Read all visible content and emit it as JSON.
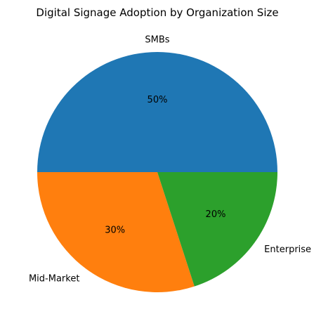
{
  "chart_data": {
    "type": "pie",
    "title": "Digital Signage Adoption by Organization Size",
    "slices": [
      {
        "label": "SMBs",
        "value": 50,
        "pct_label": "50%",
        "color": "#1f77b4"
      },
      {
        "label": "Mid-Market",
        "value": 30,
        "pct_label": "30%",
        "color": "#ff7f0e"
      },
      {
        "label": "Enterprise",
        "value": 20,
        "pct_label": "20%",
        "color": "#2ca02c"
      }
    ],
    "start_angle_deg": 0,
    "direction": "counterclockwise"
  }
}
